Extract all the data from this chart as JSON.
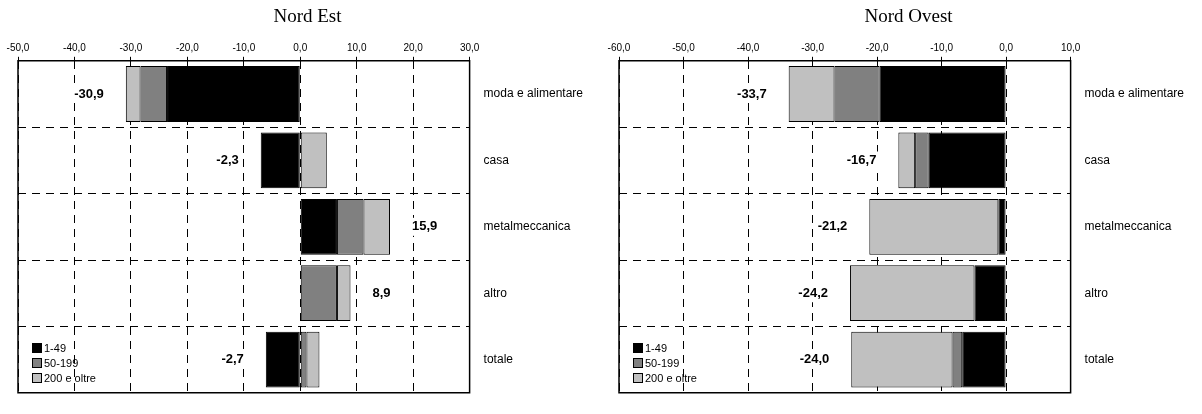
{
  "chart_data": [
    {
      "type": "bar",
      "orientation": "horizontal",
      "stacked": true,
      "title": "Nord Est",
      "categories": [
        "moda e alimentare",
        "casa",
        "metalmeccanica",
        "altro",
        "totale"
      ],
      "series": [
        {
          "name": "1-49",
          "color": "#000000",
          "values": [
            -23.6,
            -7.0,
            6.5,
            null,
            -6.1
          ]
        },
        {
          "name": "50-199",
          "color": "#808080",
          "values": [
            -4.7,
            0,
            4.7,
            6.5,
            1.1
          ]
        },
        {
          "name": "200 e oltre",
          "color": "#c0c0c0",
          "values": [
            -2.6,
            4.7,
            4.7,
            2.4,
            2.3
          ]
        }
      ],
      "totals": [
        "-30,9",
        "-2,3",
        "15,9",
        "8,9",
        "-2,7"
      ],
      "xlim": [
        -50,
        30
      ],
      "xticks": [
        {
          "value": -50,
          "label": "-50,0"
        },
        {
          "value": -40,
          "label": "-40,0"
        },
        {
          "value": -30,
          "label": "-30,0"
        },
        {
          "value": -20,
          "label": "-20,0"
        },
        {
          "value": -10,
          "label": "-10,0"
        },
        {
          "value": 0,
          "label": "0,0"
        },
        {
          "value": 10,
          "label": "10,0"
        },
        {
          "value": 20,
          "label": "20,0"
        },
        {
          "value": 30,
          "label": "30,0"
        }
      ],
      "grid": true,
      "legend": "bottom left"
    },
    {
      "type": "bar",
      "orientation": "horizontal",
      "stacked": true,
      "title": "Nord Ovest",
      "categories": [
        "moda e alimentare",
        "casa",
        "metalmeccanica",
        "altro",
        "totale"
      ],
      "series": [
        {
          "name": "1-49",
          "color": "#000000",
          "values": [
            -19.6,
            -12.0,
            -1.2,
            -4.9,
            -6.8
          ]
        },
        {
          "name": "50-199",
          "color": "#808080",
          "values": [
            -7.0,
            -2.1,
            0,
            0,
            -1.5
          ]
        },
        {
          "name": "200 e oltre",
          "color": "#c0c0c0",
          "values": [
            -7.1,
            -2.6,
            -20.0,
            -19.3,
            -15.7
          ]
        }
      ],
      "totals": [
        "-33,7",
        "-16,7",
        "-21,2",
        "-24,2",
        "-24,0"
      ],
      "xlim": [
        -60,
        10
      ],
      "xticks": [
        {
          "value": -60,
          "label": "-60,0"
        },
        {
          "value": -50,
          "label": "-50,0"
        },
        {
          "value": -40,
          "label": "-40,0"
        },
        {
          "value": -30,
          "label": "-30,0"
        },
        {
          "value": -20,
          "label": "-20,0"
        },
        {
          "value": -10,
          "label": "-10,0"
        },
        {
          "value": 0,
          "label": "0,0"
        },
        {
          "value": 10,
          "label": "10,0"
        }
      ],
      "grid": true,
      "legend": "bottom left"
    }
  ]
}
